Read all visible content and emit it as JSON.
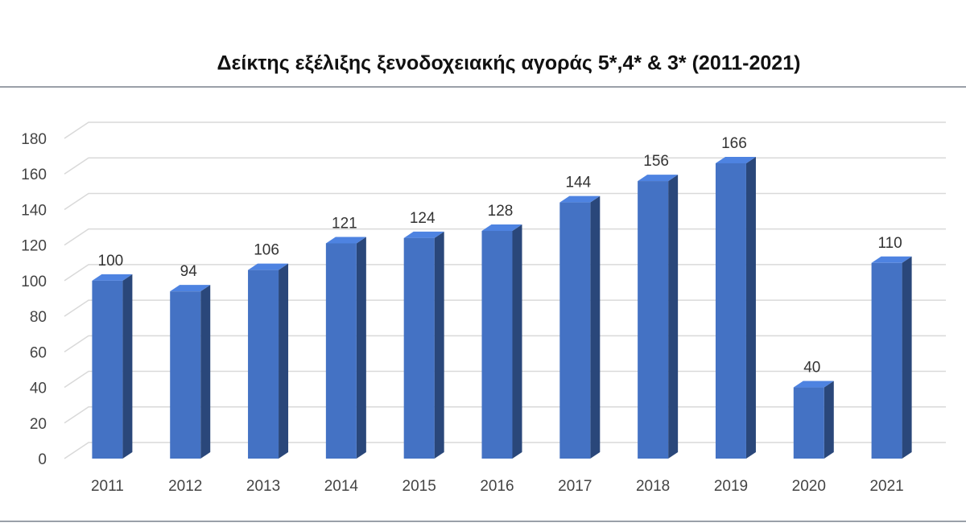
{
  "chart_data": {
    "type": "bar3d",
    "title": "Δείκτης εξέλιξης ξενοδοχειακής αγοράς 5*,4* & 3* (2011-2021)",
    "categories": [
      "2011",
      "2012",
      "2013",
      "2014",
      "2015",
      "2016",
      "2017",
      "2018",
      "2019",
      "2020",
      "2021"
    ],
    "values": [
      100,
      94,
      106,
      121,
      124,
      128,
      144,
      156,
      166,
      40,
      110
    ],
    "color": "#4472c4",
    "ylim": [
      0,
      180
    ],
    "yticks": [
      0,
      20,
      40,
      60,
      80,
      100,
      120,
      140,
      160,
      180
    ],
    "grid": true
  }
}
